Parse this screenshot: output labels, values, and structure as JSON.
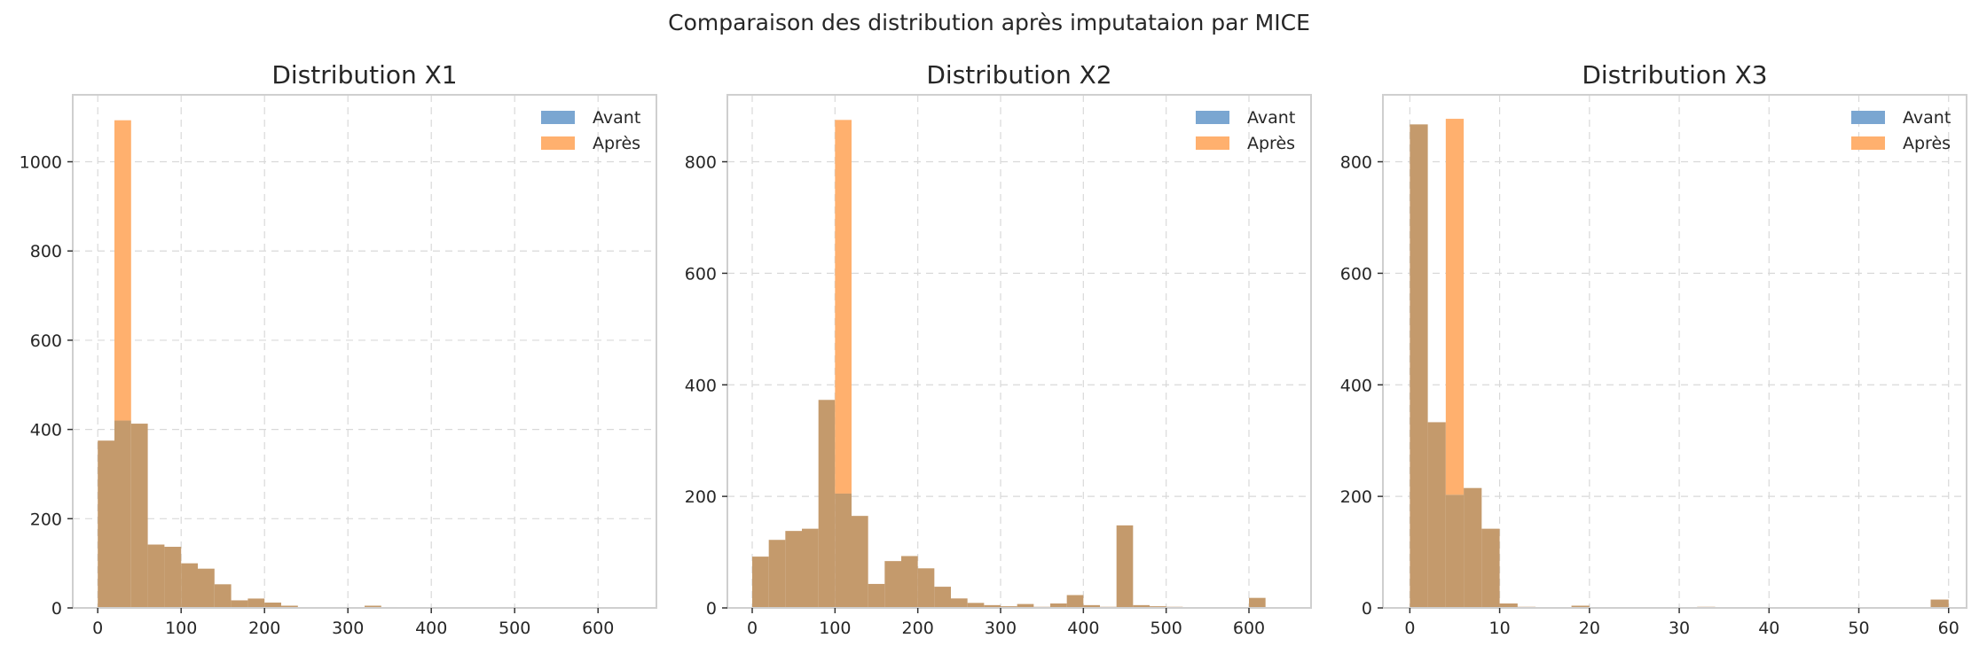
{
  "figure": {
    "suptitle": "Comparaison des distribution après imputataion par MICE"
  },
  "colors": {
    "avant": "#7aa6d1",
    "apres": "#ffb06e",
    "overlap": "#c49a6c"
  },
  "chart_data": [
    {
      "type": "histogram",
      "title": "Distribution X1",
      "xlim": [
        -30,
        670
      ],
      "ylim": [
        0,
        1150
      ],
      "x_ticks": [
        0,
        100,
        200,
        300,
        400,
        500,
        600
      ],
      "y_ticks": [
        0,
        200,
        400,
        600,
        800,
        1000
      ],
      "grid": true,
      "legend": {
        "position": "top-right",
        "entries": [
          "Avant",
          "Après"
        ]
      },
      "series": [
        {
          "name": "Avant",
          "bins": [
            [
              0,
              20,
              375
            ],
            [
              20,
              40,
              420
            ],
            [
              40,
              60,
              413
            ],
            [
              60,
              80,
              142
            ],
            [
              80,
              100,
              137
            ],
            [
              100,
              120,
              100
            ],
            [
              120,
              140,
              88
            ],
            [
              140,
              160,
              53
            ],
            [
              160,
              180,
              17
            ],
            [
              180,
              200,
              21
            ],
            [
              200,
              220,
              12
            ],
            [
              220,
              240,
              5
            ],
            [
              240,
              260,
              2
            ],
            [
              260,
              280,
              2
            ],
            [
              280,
              300,
              2
            ],
            [
              320,
              340,
              5
            ],
            [
              340,
              360,
              2
            ],
            [
              480,
              500,
              2
            ]
          ]
        },
        {
          "name": "Après",
          "bins": [
            [
              0,
              20,
              375
            ],
            [
              20,
              40,
              1093
            ],
            [
              40,
              60,
              413
            ],
            [
              60,
              80,
              142
            ],
            [
              80,
              100,
              137
            ],
            [
              100,
              120,
              100
            ],
            [
              120,
              140,
              88
            ],
            [
              140,
              160,
              53
            ],
            [
              160,
              180,
              17
            ],
            [
              180,
              200,
              21
            ],
            [
              200,
              220,
              12
            ],
            [
              220,
              240,
              5
            ],
            [
              240,
              260,
              2
            ],
            [
              260,
              280,
              2
            ],
            [
              280,
              300,
              2
            ],
            [
              320,
              340,
              5
            ],
            [
              340,
              360,
              2
            ],
            [
              480,
              500,
              2
            ]
          ]
        }
      ]
    },
    {
      "type": "histogram",
      "title": "Distribution X2",
      "xlim": [
        -30,
        675
      ],
      "ylim": [
        0,
        920
      ],
      "x_ticks": [
        0,
        100,
        200,
        300,
        400,
        500,
        600
      ],
      "y_ticks": [
        0,
        200,
        400,
        600,
        800
      ],
      "grid": true,
      "legend": {
        "position": "top-right",
        "entries": [
          "Avant",
          "Après"
        ]
      },
      "series": [
        {
          "name": "Avant",
          "bins": [
            [
              0,
              20,
              92
            ],
            [
              20,
              40,
              122
            ],
            [
              40,
              60,
              138
            ],
            [
              60,
              80,
              142
            ],
            [
              80,
              100,
              373
            ],
            [
              100,
              120,
              205
            ],
            [
              120,
              140,
              165
            ],
            [
              140,
              160,
              43
            ],
            [
              160,
              180,
              84
            ],
            [
              180,
              200,
              93
            ],
            [
              200,
              220,
              71
            ],
            [
              220,
              240,
              38
            ],
            [
              240,
              260,
              17
            ],
            [
              260,
              280,
              9
            ],
            [
              280,
              300,
              5
            ],
            [
              300,
              320,
              3
            ],
            [
              320,
              340,
              7
            ],
            [
              340,
              360,
              2
            ],
            [
              360,
              380,
              8
            ],
            [
              380,
              400,
              23
            ],
            [
              400,
              420,
              5
            ],
            [
              420,
              440,
              2
            ],
            [
              440,
              460,
              148
            ],
            [
              460,
              480,
              5
            ],
            [
              480,
              500,
              3
            ],
            [
              500,
              520,
              2
            ],
            [
              600,
              620,
              18
            ]
          ]
        },
        {
          "name": "Après",
          "bins": [
            [
              0,
              20,
              92
            ],
            [
              20,
              40,
              122
            ],
            [
              40,
              60,
              138
            ],
            [
              60,
              80,
              142
            ],
            [
              80,
              100,
              373
            ],
            [
              100,
              120,
              875
            ],
            [
              120,
              140,
              165
            ],
            [
              140,
              160,
              43
            ],
            [
              160,
              180,
              84
            ],
            [
              180,
              200,
              93
            ],
            [
              200,
              220,
              71
            ],
            [
              220,
              240,
              38
            ],
            [
              240,
              260,
              17
            ],
            [
              260,
              280,
              9
            ],
            [
              280,
              300,
              5
            ],
            [
              300,
              320,
              3
            ],
            [
              320,
              340,
              7
            ],
            [
              340,
              360,
              2
            ],
            [
              360,
              380,
              8
            ],
            [
              380,
              400,
              23
            ],
            [
              400,
              420,
              5
            ],
            [
              420,
              440,
              2
            ],
            [
              440,
              460,
              148
            ],
            [
              460,
              480,
              5
            ],
            [
              480,
              500,
              3
            ],
            [
              500,
              520,
              2
            ],
            [
              600,
              620,
              18
            ]
          ]
        }
      ]
    },
    {
      "type": "histogram",
      "title": "Distribution X3",
      "xlim": [
        -3,
        62
      ],
      "ylim": [
        0,
        920
      ],
      "x_ticks": [
        0,
        10,
        20,
        30,
        40,
        50,
        60
      ],
      "y_ticks": [
        0,
        200,
        400,
        600,
        800
      ],
      "grid": true,
      "legend": {
        "position": "top-right",
        "entries": [
          "Avant",
          "Après"
        ]
      },
      "series": [
        {
          "name": "Avant",
          "bins": [
            [
              0,
              2,
              867
            ],
            [
              2,
              4,
              333
            ],
            [
              4,
              6,
              203
            ],
            [
              6,
              8,
              215
            ],
            [
              8,
              10,
              142
            ],
            [
              10,
              12,
              8
            ],
            [
              12,
              14,
              2
            ],
            [
              18,
              20,
              4
            ],
            [
              32,
              34,
              2
            ],
            [
              58,
              60,
              15
            ]
          ]
        },
        {
          "name": "Après",
          "bins": [
            [
              0,
              2,
              867
            ],
            [
              2,
              4,
              333
            ],
            [
              4,
              6,
              877
            ],
            [
              6,
              8,
              215
            ],
            [
              8,
              10,
              142
            ],
            [
              10,
              12,
              8
            ],
            [
              12,
              14,
              2
            ],
            [
              18,
              20,
              4
            ],
            [
              32,
              34,
              2
            ],
            [
              58,
              60,
              15
            ]
          ]
        }
      ]
    }
  ]
}
